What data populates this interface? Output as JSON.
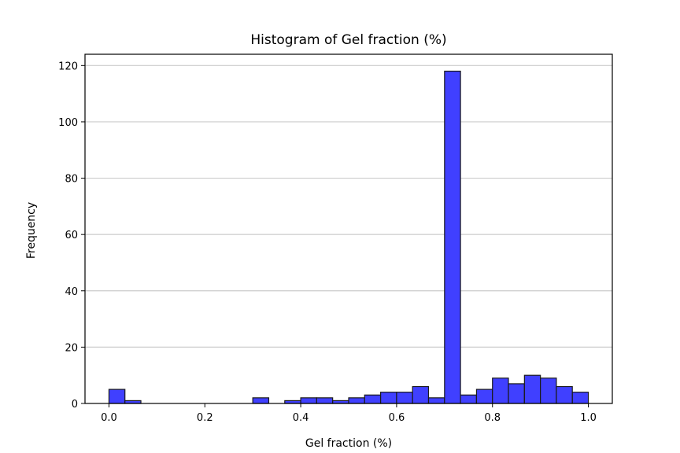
{
  "chart_data": {
    "type": "bar",
    "title": "Histogram of Gel fraction (%)",
    "xlabel": "Gel fraction (%)",
    "ylabel": "Frequency",
    "xlim": [
      -0.05,
      1.05
    ],
    "ylim": [
      0,
      124
    ],
    "bin_width": 0.0333,
    "bins": [
      {
        "start": 0.0,
        "count": 5
      },
      {
        "start": 0.0333,
        "count": 1
      },
      {
        "start": 0.0667,
        "count": 0
      },
      {
        "start": 0.1,
        "count": 0
      },
      {
        "start": 0.1333,
        "count": 0
      },
      {
        "start": 0.1667,
        "count": 0
      },
      {
        "start": 0.2,
        "count": 0
      },
      {
        "start": 0.2333,
        "count": 0
      },
      {
        "start": 0.2667,
        "count": 0
      },
      {
        "start": 0.3,
        "count": 2
      },
      {
        "start": 0.3333,
        "count": 0
      },
      {
        "start": 0.3667,
        "count": 1
      },
      {
        "start": 0.4,
        "count": 2
      },
      {
        "start": 0.4333,
        "count": 2
      },
      {
        "start": 0.4667,
        "count": 1
      },
      {
        "start": 0.5,
        "count": 2
      },
      {
        "start": 0.5333,
        "count": 3
      },
      {
        "start": 0.5667,
        "count": 4
      },
      {
        "start": 0.6,
        "count": 4
      },
      {
        "start": 0.6333,
        "count": 6
      },
      {
        "start": 0.6667,
        "count": 2
      },
      {
        "start": 0.7,
        "count": 118
      },
      {
        "start": 0.7333,
        "count": 3
      },
      {
        "start": 0.7667,
        "count": 5
      },
      {
        "start": 0.8,
        "count": 9
      },
      {
        "start": 0.8333,
        "count": 7
      },
      {
        "start": 0.8667,
        "count": 10
      },
      {
        "start": 0.9,
        "count": 9
      },
      {
        "start": 0.9333,
        "count": 6
      },
      {
        "start": 0.9667,
        "count": 4
      }
    ],
    "x_ticks": [
      "0.0",
      "0.2",
      "0.4",
      "0.6",
      "0.8",
      "1.0"
    ],
    "y_ticks": [
      "0",
      "20",
      "40",
      "60",
      "80",
      "100",
      "120"
    ],
    "grid": "horizontal",
    "bar_color": "#4040ff",
    "bar_edge_color": "#1a1a1a"
  }
}
